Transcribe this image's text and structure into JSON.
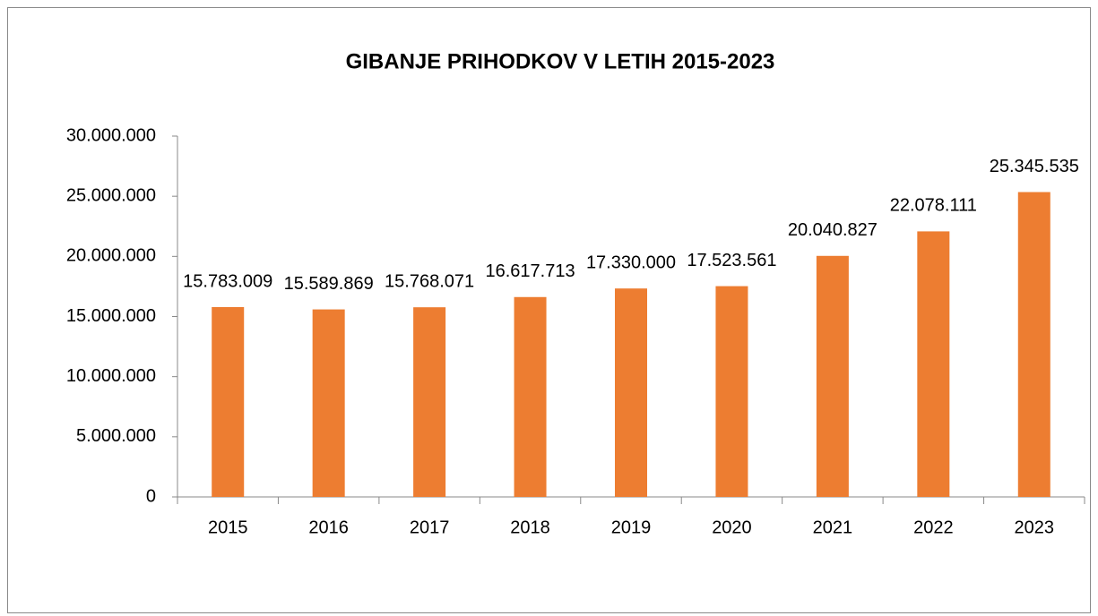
{
  "chart_data": {
    "type": "bar",
    "title": "GIBANJE PRIHODKOV V LETIH 2015-2023",
    "categories": [
      "2015",
      "2016",
      "2017",
      "2018",
      "2019",
      "2020",
      "2021",
      "2022",
      "2023"
    ],
    "values": [
      15783009,
      15589869,
      15768071,
      16617713,
      17330000,
      17523561,
      20040827,
      22078111,
      25345535
    ],
    "value_labels": [
      "15.783.009",
      "15.589.869",
      "15.768.071",
      "16.617.713",
      "17.330.000",
      "17.523.561",
      "20.040.827",
      "22.078.111",
      "25.345.535"
    ],
    "color": "#ed7d31",
    "ylim": [
      0,
      30000000
    ],
    "yticks": [
      0,
      {
        "value": 5000000,
        "label": "5.000.000"
      },
      {
        "value": 10000000,
        "label": "10.000.000"
      },
      {
        "value": 15000000,
        "label": "15.000.000"
      },
      {
        "value": 20000000,
        "label": "20.000.000"
      },
      {
        "value": 25000000,
        "label": "25.000.000"
      },
      {
        "value": 30000000,
        "label": "30.000.000"
      }
    ],
    "grid": false
  }
}
